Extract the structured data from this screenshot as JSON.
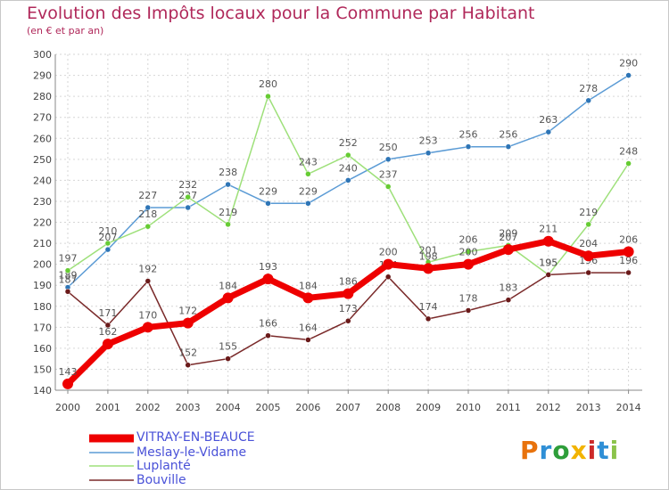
{
  "header": {
    "title": "Evolution des Impôts locaux pour la Commune par Habitant",
    "subtitle": "(en € et par an)"
  },
  "logo": {
    "text": "Proxiti",
    "letter_colors": [
      "#e8720c",
      "#2f8fd6",
      "#2e9e3a",
      "#f2b300",
      "#cc2a2a",
      "#2f8fd6",
      "#8bc34a"
    ]
  },
  "chart_data": {
    "type": "line",
    "x": [
      "2000",
      "2001",
      "2002",
      "2003",
      "2004",
      "2005",
      "2006",
      "2007",
      "2008",
      "2009",
      "2010",
      "2011",
      "2012",
      "2013",
      "2014"
    ],
    "ylim": [
      140,
      300
    ],
    "yticks": [
      140,
      150,
      160,
      170,
      180,
      190,
      200,
      210,
      220,
      230,
      240,
      250,
      260,
      270,
      280,
      290,
      300
    ],
    "grid": true,
    "series": [
      {
        "name": "Meslay-le-Vidame",
        "color": "#5b9bd5",
        "marker_color": "#2e75b6",
        "values": [
          189,
          207,
          227,
          227,
          238,
          229,
          229,
          240,
          250,
          253,
          256,
          256,
          263,
          278,
          290
        ],
        "labels": [
          "189",
          "207",
          "227",
          "227",
          "238",
          "229",
          "229",
          "240",
          "250",
          "253",
          "256",
          "256",
          "263",
          "278",
          "290"
        ]
      },
      {
        "name": "Luplanté",
        "color": "#9ee07a",
        "marker_color": "#66cc33",
        "values": [
          197,
          210,
          218,
          232,
          219,
          280,
          243,
          252,
          237,
          201,
          206,
          209,
          195,
          219,
          248
        ],
        "labels": [
          "197",
          "210",
          "218",
          "232",
          "219",
          "280",
          "243",
          "252",
          "237",
          "201",
          "206",
          "209",
          "195",
          "219",
          "248"
        ]
      },
      {
        "name": "Bouville",
        "color": "#7a2a2a",
        "marker_color": "#6a1a1a",
        "values": [
          187,
          171,
          192,
          152,
          155,
          166,
          164,
          173,
          194,
          174,
          178,
          183,
          195,
          196,
          196
        ],
        "labels": [
          "187",
          "171",
          "192",
          "152",
          "155",
          "166",
          "164",
          "173",
          "194",
          "174",
          "178",
          "183",
          "195",
          "196",
          "196"
        ]
      },
      {
        "name": "VITRAY-EN-BEAUCE",
        "color": "#ee0000",
        "marker_color": "#ee0000",
        "thick": true,
        "values": [
          143,
          162,
          170,
          172,
          184,
          193,
          184,
          186,
          200,
          198,
          200,
          207,
          211,
          204,
          206
        ],
        "labels": [
          "143",
          "162",
          "170",
          "172",
          "184",
          "193",
          "184",
          "186",
          "200",
          "198",
          "200",
          "207",
          "211",
          "204",
          "206"
        ]
      }
    ],
    "legend_order": [
      "VITRAY-EN-BEAUCE",
      "Meslay-le-Vidame",
      "Luplanté",
      "Bouville"
    ],
    "legend_placement": "bottom-left"
  }
}
